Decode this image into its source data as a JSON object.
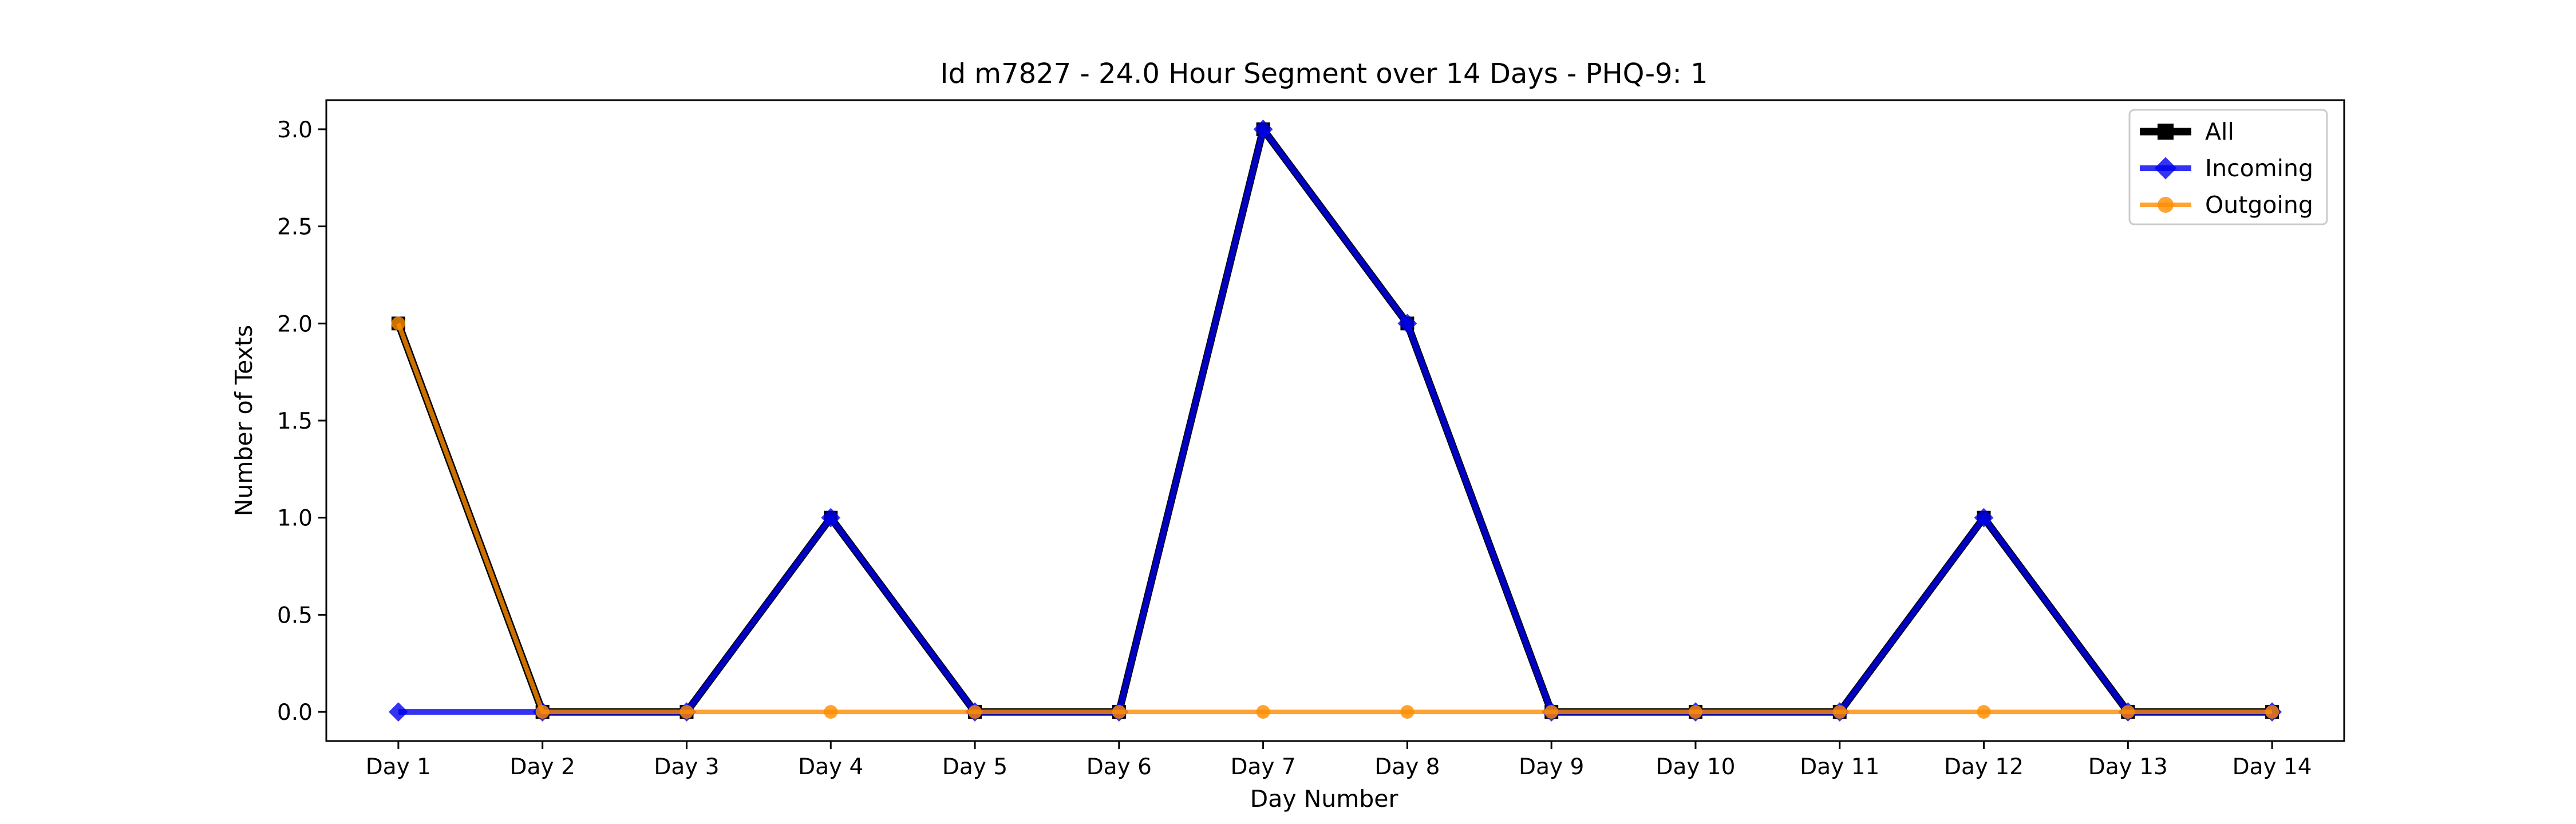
{
  "chart_data": {
    "type": "line",
    "title": "Id m7827 - 24.0 Hour Segment over 14 Days - PHQ-9: 1",
    "xlabel": "Day Number",
    "ylabel": "Number of Texts",
    "categories": [
      "Day 1",
      "Day 2",
      "Day 3",
      "Day 4",
      "Day 5",
      "Day 6",
      "Day 7",
      "Day 8",
      "Day 9",
      "Day 10",
      "Day 11",
      "Day 12",
      "Day 13",
      "Day 14"
    ],
    "ylim": [
      -0.15,
      3.15
    ],
    "yticks": [
      "0.0",
      "0.5",
      "1.0",
      "1.5",
      "2.0",
      "2.5",
      "3.0"
    ],
    "ytick_values": [
      0,
      0.5,
      1.0,
      1.5,
      2.0,
      2.5,
      3.0
    ],
    "grid": false,
    "legend": "top-right",
    "series": [
      {
        "name": "All",
        "color": "#000000",
        "marker": "square",
        "values": [
          2,
          0,
          0,
          1,
          0,
          0,
          3,
          2,
          0,
          0,
          0,
          1,
          0,
          0
        ]
      },
      {
        "name": "Incoming",
        "color": "#0000ee",
        "marker": "diamond",
        "values": [
          0,
          0,
          0,
          1,
          0,
          0,
          3,
          2,
          0,
          0,
          0,
          1,
          0,
          0
        ]
      },
      {
        "name": "Outgoing",
        "color": "#ff8c00",
        "marker": "circle",
        "values": [
          2,
          0,
          0,
          0,
          0,
          0,
          0,
          0,
          0,
          0,
          0,
          0,
          0,
          0
        ]
      }
    ]
  }
}
